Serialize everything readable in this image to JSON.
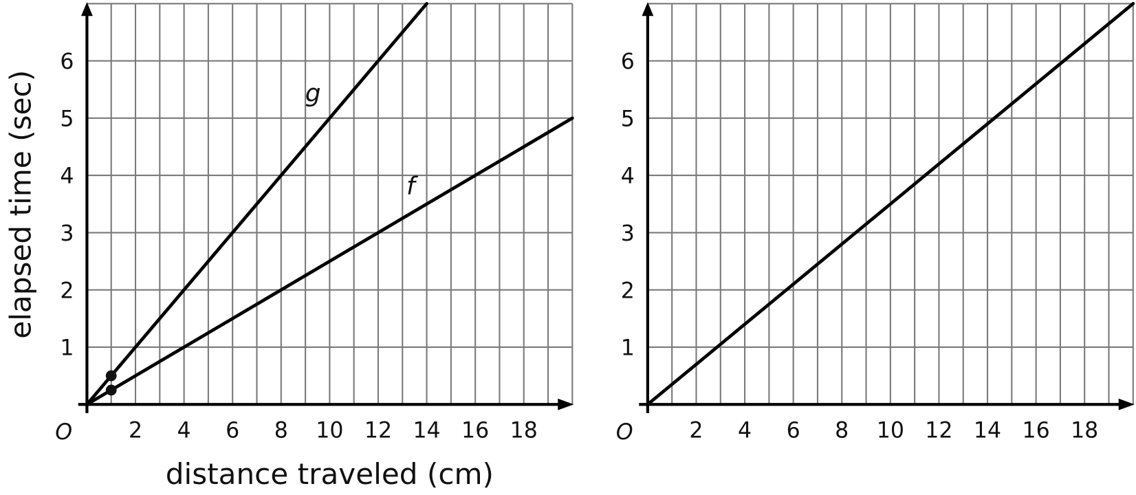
{
  "chart_data": [
    {
      "type": "line",
      "xlabel": "distance traveled (cm)",
      "ylabel": "elapsed time (sec)",
      "xlim": [
        0,
        20
      ],
      "ylim": [
        0,
        7
      ],
      "origin_label": "O",
      "xticks": [
        2,
        4,
        6,
        8,
        10,
        12,
        14,
        16,
        18
      ],
      "yticks": [
        1,
        2,
        3,
        4,
        5,
        6
      ],
      "grid": true,
      "grid_step": 1,
      "series": [
        {
          "name": "g",
          "points": [
            [
              0,
              0
            ],
            [
              14,
              7
            ]
          ],
          "marked_points": [
            [
              1,
              0.5
            ]
          ]
        },
        {
          "name": "f",
          "points": [
            [
              0,
              0
            ],
            [
              20,
              5
            ]
          ],
          "marked_points": [
            [
              1,
              0.25
            ]
          ]
        }
      ],
      "colors": {
        "line": "#000000",
        "grid": "#7a7a7a"
      }
    },
    {
      "type": "line",
      "xlabel": "",
      "ylabel": "",
      "xlim": [
        0,
        20
      ],
      "ylim": [
        0,
        7
      ],
      "origin_label": "O",
      "xticks": [
        2,
        4,
        6,
        8,
        10,
        12,
        14,
        16,
        18
      ],
      "yticks": [
        1,
        2,
        3,
        4,
        5,
        6
      ],
      "grid": true,
      "grid_step": 1,
      "series": [
        {
          "points": [
            [
              0,
              0
            ],
            [
              20,
              7
            ]
          ]
        }
      ],
      "colors": {
        "line": "#000000",
        "grid": "#7a7a7a"
      }
    }
  ]
}
